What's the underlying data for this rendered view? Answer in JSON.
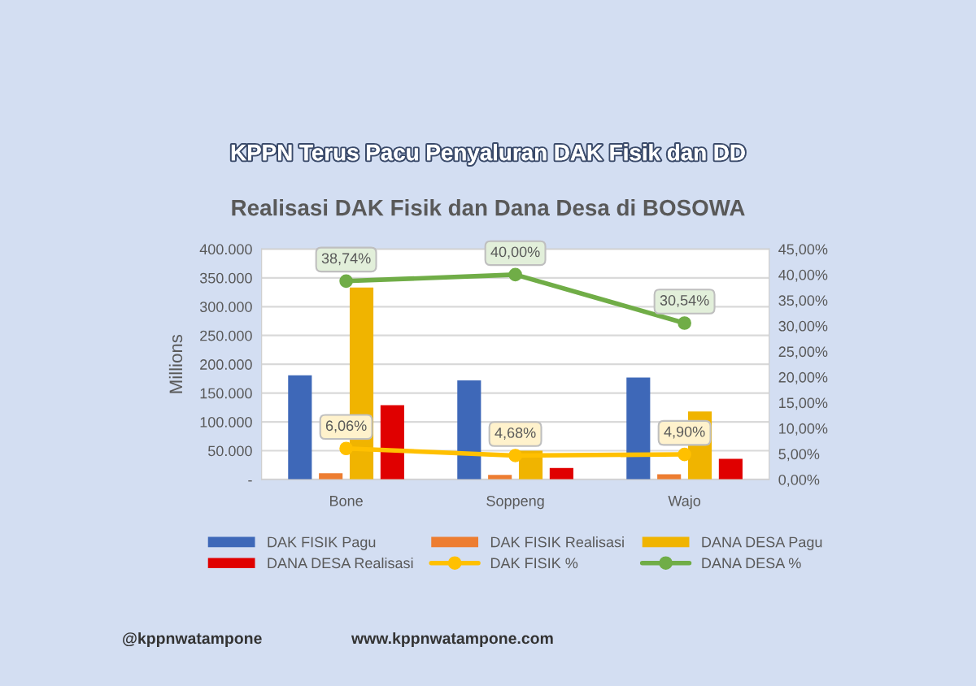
{
  "chart_data": {
    "type": "bar",
    "title": "KPPN Terus Pacu Penyaluran DAK Fisik dan DD",
    "subtitle": "Realisasi DAK Fisik dan Dana Desa di BOSOWA",
    "ylabel": "Millions",
    "categories": [
      "Bone",
      "Soppeng",
      "Wajo"
    ],
    "series": [
      {
        "name": "DAK FISIK Pagu",
        "color": "#3e68b8",
        "values": [
          181000,
          172000,
          177000
        ]
      },
      {
        "name": "DAK FISIK Realisasi",
        "color": "#ed7d31",
        "values": [
          11000,
          8000,
          9000
        ]
      },
      {
        "name": "DANA DESA Pagu",
        "color": "#f0b400",
        "values": [
          333000,
          50000,
          118000
        ]
      },
      {
        "name": "DANA DESA Realisasi",
        "color": "#e00000",
        "values": [
          129000,
          20000,
          36000
        ]
      },
      {
        "name": "DAK FISIK %",
        "type": "line",
        "axis": "y2",
        "color": "#ffc000",
        "values": [
          6.06,
          4.68,
          4.9
        ],
        "value_labels": [
          "6,06%",
          "4,68%",
          "4,90%"
        ]
      },
      {
        "name": "DANA DESA %",
        "type": "line",
        "axis": "y2",
        "color": "#70ad47",
        "values": [
          38.74,
          40.0,
          30.54
        ],
        "value_labels": [
          "38,74%",
          "40,00%",
          "30,54%"
        ]
      }
    ],
    "ylim": [
      0,
      400000
    ],
    "yticks": [
      {
        "value": 0,
        "label": "-"
      },
      {
        "value": 50000,
        "label": "50.000"
      },
      {
        "value": 100000,
        "label": "100.000"
      },
      {
        "value": 150000,
        "label": "150.000"
      },
      {
        "value": 200000,
        "label": "200.000"
      },
      {
        "value": 250000,
        "label": "250.000"
      },
      {
        "value": 300000,
        "label": "300.000"
      },
      {
        "value": 350000,
        "label": "350.000"
      },
      {
        "value": 400000,
        "label": "400.000"
      }
    ],
    "y2lim": [
      0,
      45
    ],
    "y2ticks": [
      {
        "value": 0,
        "label": "0,00%"
      },
      {
        "value": 5,
        "label": "5,00%"
      },
      {
        "value": 10,
        "label": "10,00%"
      },
      {
        "value": 15,
        "label": "15,00%"
      },
      {
        "value": 20,
        "label": "20,00%"
      },
      {
        "value": 25,
        "label": "25,00%"
      },
      {
        "value": 30,
        "label": "30,00%"
      },
      {
        "value": 35,
        "label": "35,00%"
      },
      {
        "value": 40,
        "label": "40,00%"
      },
      {
        "value": 45,
        "label": "45,00%"
      }
    ],
    "grid": "y",
    "legend": "bottom",
    "marker": "circle",
    "annotations": [
      "@kppnwatampone",
      "www.kppnwatampone.com"
    ]
  }
}
